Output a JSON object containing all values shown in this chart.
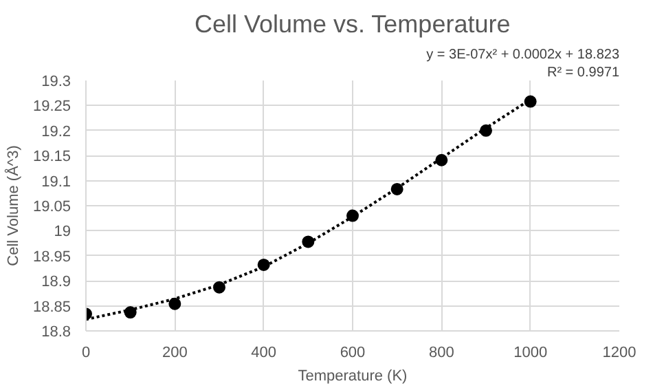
{
  "chart_data": {
    "type": "scatter",
    "title": "Cell Volume vs. Temperature",
    "xlabel": "Temperature (K)",
    "ylabel": "Cell Volume (Å^3)",
    "annotations": [
      "y = 3E-07x² + 0.0002x + 18.823",
      "R² = 0.9971"
    ],
    "x": [
      0,
      100,
      200,
      300,
      400,
      500,
      600,
      700,
      800,
      900,
      1000
    ],
    "series": [
      {
        "color": "#000000",
        "marker": "circle",
        "values": [
          18.834,
          18.837,
          18.854,
          18.887,
          18.932,
          18.978,
          19.03,
          19.083,
          19.141,
          19.2,
          19.258
        ]
      },
      {
        "type": "line",
        "color": "#000000",
        "line_style": "dotted",
        "x": [
          0,
          100,
          200,
          300,
          400,
          500,
          600,
          700,
          800,
          900,
          1000
        ],
        "values": [
          18.823,
          18.842,
          18.864,
          18.892,
          18.928,
          18.975,
          19.028,
          19.085,
          19.145,
          19.205,
          19.262
        ]
      }
    ],
    "xlim": [
      0,
      1200
    ],
    "xticks": [
      0,
      200,
      400,
      600,
      800,
      1000,
      1200
    ],
    "ylim": [
      18.8,
      19.3
    ],
    "yticks": [
      18.8,
      18.85,
      18.9,
      18.95,
      19,
      19.05,
      19.1,
      19.15,
      19.2,
      19.25,
      19.3
    ],
    "grid": true
  }
}
